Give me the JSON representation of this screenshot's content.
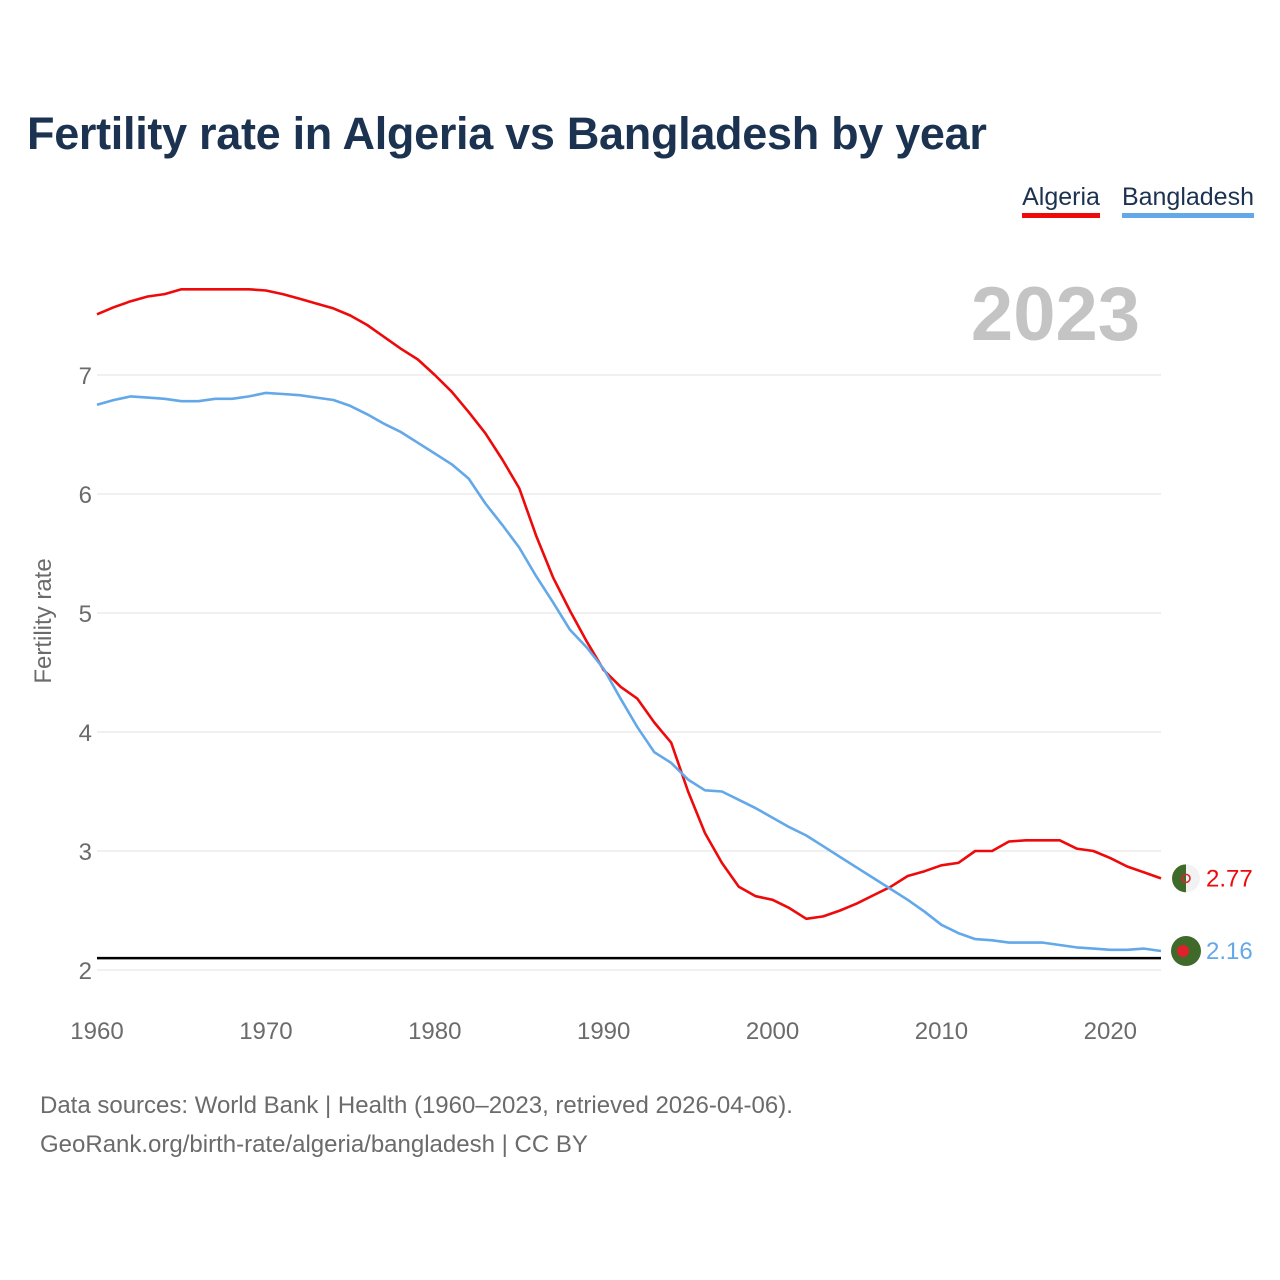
{
  "title": "Fertility rate in Algeria vs Bangladesh by year",
  "legend": [
    {
      "label": "Algeria",
      "color": "#ee0a0a"
    },
    {
      "label": "Bangladesh",
      "color": "#63a8e8"
    }
  ],
  "footer": {
    "line1": "Data sources: World Bank | Health (1960–2023, retrieved 2026-04-06).",
    "line2": "GeoRank.org/birth-rate/algeria/bangladesh | CC BY"
  },
  "chart_data": {
    "type": "line",
    "title": "Fertility rate in Algeria vs Bangladesh by year",
    "year_label": "2023",
    "xlabel": "",
    "ylabel": "Fertility rate",
    "xlim": [
      1960,
      2023
    ],
    "ylim": [
      2,
      7.5
    ],
    "x_ticks": [
      1960,
      1970,
      1980,
      1990,
      2000,
      2010,
      2020
    ],
    "y_ticks": [
      2,
      3,
      4,
      5,
      6,
      7
    ],
    "reference_line": 2.1,
    "grid": true,
    "legend_position": "top-right",
    "x": [
      1960,
      1961,
      1962,
      1963,
      1964,
      1965,
      1966,
      1967,
      1968,
      1969,
      1970,
      1971,
      1972,
      1973,
      1974,
      1975,
      1976,
      1977,
      1978,
      1979,
      1980,
      1981,
      1982,
      1983,
      1984,
      1985,
      1986,
      1987,
      1988,
      1989,
      1990,
      1991,
      1992,
      1993,
      1994,
      1995,
      1996,
      1997,
      1998,
      1999,
      2000,
      2001,
      2002,
      2003,
      2004,
      2005,
      2006,
      2007,
      2008,
      2009,
      2010,
      2011,
      2012,
      2013,
      2014,
      2015,
      2016,
      2017,
      2018,
      2019,
      2020,
      2021,
      2022,
      2023
    ],
    "series": [
      {
        "name": "Algeria",
        "color": "#ee0a0a",
        "end_label": "2.77",
        "values": [
          7.51,
          7.57,
          7.62,
          7.66,
          7.68,
          7.72,
          7.72,
          7.72,
          7.72,
          7.72,
          7.71,
          7.68,
          7.64,
          7.6,
          7.56,
          7.5,
          7.42,
          7.32,
          7.22,
          7.13,
          7.0,
          6.86,
          6.69,
          6.51,
          6.29,
          6.05,
          5.65,
          5.3,
          5.02,
          4.76,
          4.52,
          4.38,
          4.28,
          4.08,
          3.91,
          3.5,
          3.15,
          2.9,
          2.7,
          2.62,
          2.59,
          2.52,
          2.43,
          2.45,
          2.5,
          2.56,
          2.63,
          2.7,
          2.79,
          2.83,
          2.88,
          2.9,
          3.0,
          3.0,
          3.08,
          3.09,
          3.09,
          3.09,
          3.02,
          3.0,
          2.94,
          2.87,
          2.82,
          2.77
        ]
      },
      {
        "name": "Bangladesh",
        "color": "#63a8e8",
        "end_label": "2.16",
        "values": [
          6.75,
          6.79,
          6.82,
          6.81,
          6.8,
          6.78,
          6.78,
          6.8,
          6.8,
          6.82,
          6.85,
          6.84,
          6.83,
          6.81,
          6.79,
          6.74,
          6.67,
          6.59,
          6.52,
          6.43,
          6.34,
          6.25,
          6.13,
          5.92,
          5.74,
          5.55,
          5.31,
          5.09,
          4.86,
          4.71,
          4.53,
          4.28,
          4.04,
          3.83,
          3.74,
          3.6,
          3.51,
          3.5,
          3.43,
          3.36,
          3.28,
          3.2,
          3.13,
          3.04,
          2.95,
          2.86,
          2.77,
          2.68,
          2.59,
          2.49,
          2.38,
          2.31,
          2.26,
          2.25,
          2.23,
          2.23,
          2.23,
          2.21,
          2.19,
          2.18,
          2.17,
          2.17,
          2.18,
          2.16
        ]
      }
    ]
  }
}
